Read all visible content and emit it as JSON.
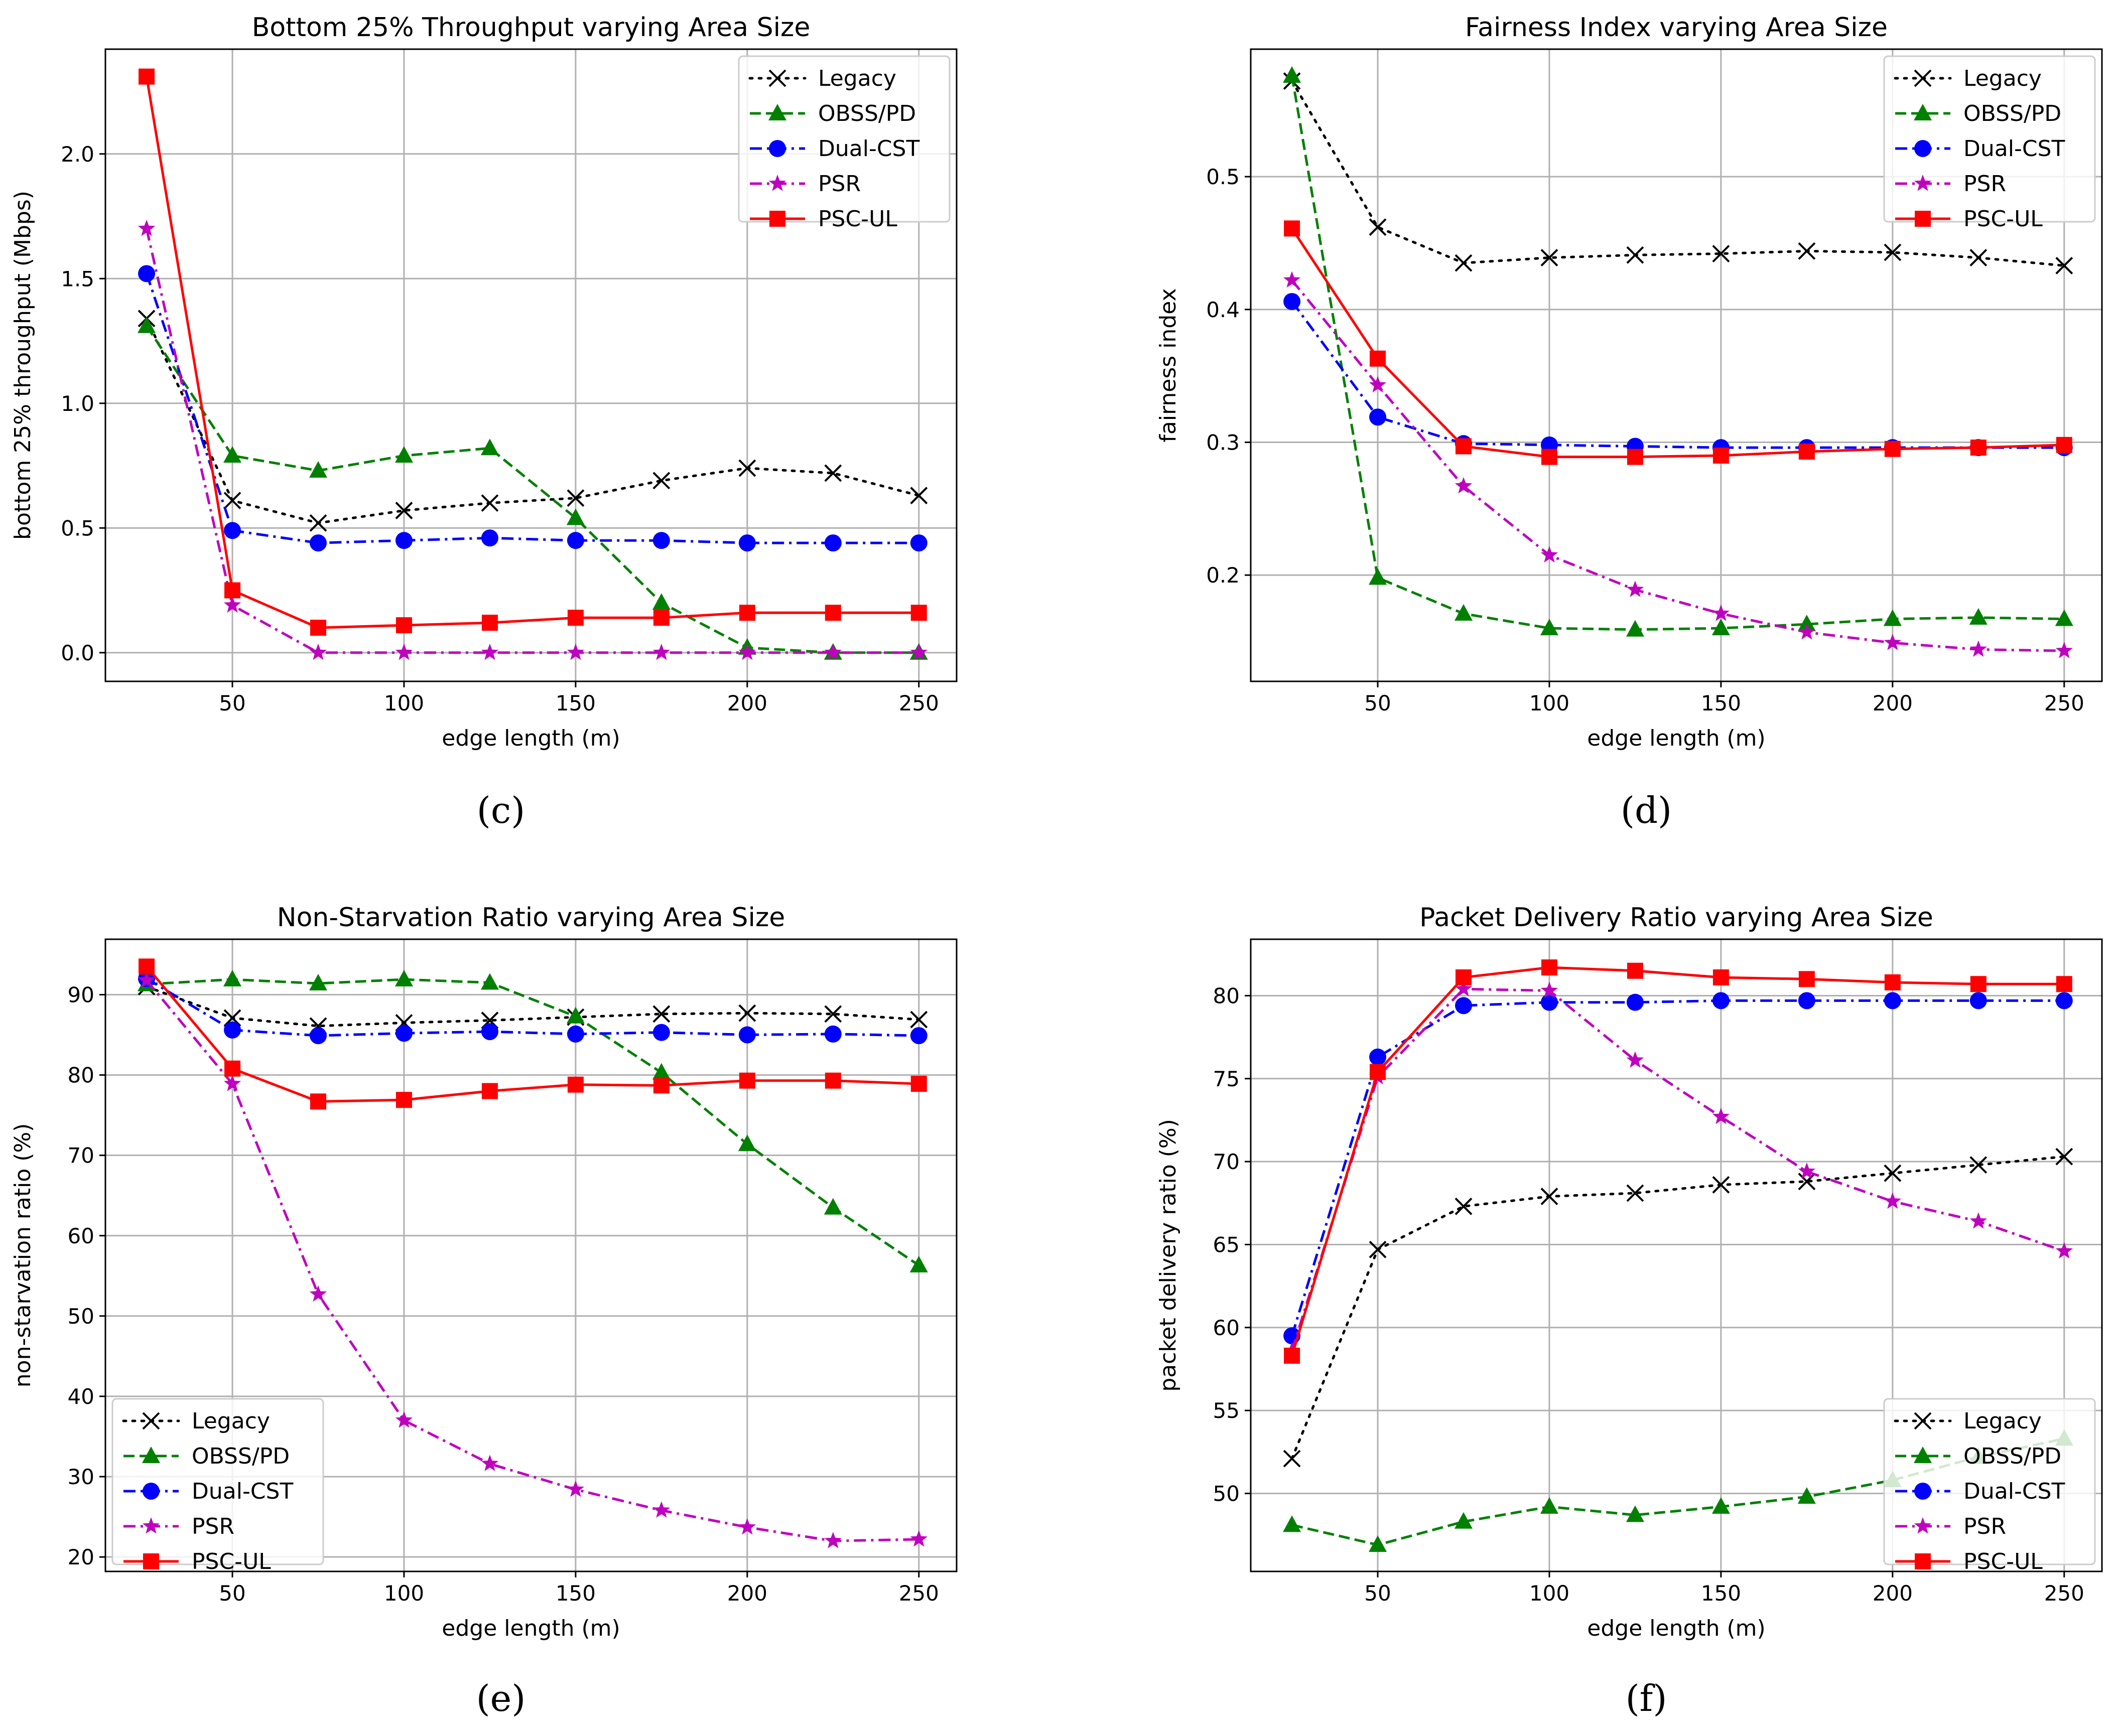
{
  "series_styles": [
    {
      "name": "Legacy",
      "color": "#000000",
      "dash": "dotted",
      "marker": "x"
    },
    {
      "name": "OBSS/PD",
      "color": "#008000",
      "dash": "dashed",
      "marker": "triangle"
    },
    {
      "name": "Dual-CST",
      "color": "#0000ff",
      "dash": "dashdot",
      "marker": "circle"
    },
    {
      "name": "PSR",
      "color": "#bf00bf",
      "dash": "dashdot",
      "marker": "star"
    },
    {
      "name": "PSC-UL",
      "color": "#ff0000",
      "dash": "solid",
      "marker": "square"
    }
  ],
  "chart_data": [
    {
      "type": "line",
      "panel_label": "(c)",
      "title": "Bottom 25% Throughput varying Area Size",
      "xlabel": "edge length (m)",
      "ylabel": "bottom 25% throughput (Mbps)",
      "x": [
        25,
        50,
        75,
        100,
        125,
        150,
        175,
        200,
        225,
        250
      ],
      "xlim": [
        13,
        261
      ],
      "ylim": [
        -0.115,
        2.42
      ],
      "xticks": [
        50,
        100,
        150,
        200,
        250
      ],
      "yticks": [
        0.0,
        0.5,
        1.0,
        1.5,
        2.0
      ],
      "ytick_labels": [
        "0.0",
        "0.5",
        "1.0",
        "1.5",
        "2.0"
      ],
      "legend_loc": "upper right",
      "grid": true,
      "series": [
        {
          "name": "Legacy",
          "values": [
            1.34,
            0.61,
            0.52,
            0.57,
            0.6,
            0.62,
            0.69,
            0.74,
            0.72,
            0.63
          ]
        },
        {
          "name": "OBSS/PD",
          "values": [
            1.31,
            0.79,
            0.73,
            0.79,
            0.82,
            0.54,
            0.2,
            0.02,
            0.0,
            0.0
          ]
        },
        {
          "name": "Dual-CST",
          "values": [
            1.52,
            0.49,
            0.44,
            0.45,
            0.46,
            0.45,
            0.45,
            0.44,
            0.44,
            0.44
          ]
        },
        {
          "name": "PSR",
          "values": [
            1.7,
            0.19,
            0.0,
            0.0,
            0.0,
            0.0,
            0.0,
            0.0,
            0.0,
            0.0
          ]
        },
        {
          "name": "PSC-UL",
          "values": [
            2.31,
            0.25,
            0.1,
            0.11,
            0.12,
            0.14,
            0.14,
            0.16,
            0.16,
            0.16
          ]
        }
      ]
    },
    {
      "type": "line",
      "panel_label": "(d)",
      "title": "Fairness Index varying Area Size",
      "xlabel": "edge length (m)",
      "ylabel": "fairness index",
      "x": [
        25,
        50,
        75,
        100,
        125,
        150,
        175,
        200,
        225,
        250
      ],
      "xlim": [
        13,
        261
      ],
      "ylim": [
        0.12,
        0.596
      ],
      "xticks": [
        50,
        100,
        150,
        200,
        250
      ],
      "yticks": [
        0.2,
        0.3,
        0.4,
        0.5
      ],
      "ytick_labels": [
        "0.2",
        "0.3",
        "0.4",
        "0.5"
      ],
      "legend_loc": "upper right",
      "grid": true,
      "series": [
        {
          "name": "Legacy",
          "values": [
            0.572,
            0.462,
            0.435,
            0.439,
            0.441,
            0.442,
            0.444,
            0.443,
            0.439,
            0.433
          ]
        },
        {
          "name": "OBSS/PD",
          "values": [
            0.576,
            0.198,
            0.171,
            0.16,
            0.159,
            0.16,
            0.163,
            0.167,
            0.168,
            0.167
          ]
        },
        {
          "name": "Dual-CST",
          "values": [
            0.406,
            0.319,
            0.299,
            0.298,
            0.297,
            0.296,
            0.296,
            0.296,
            0.296,
            0.296
          ]
        },
        {
          "name": "PSR",
          "values": [
            0.422,
            0.343,
            0.267,
            0.215,
            0.189,
            0.171,
            0.157,
            0.149,
            0.144,
            0.143
          ]
        },
        {
          "name": "PSC-UL",
          "values": [
            0.461,
            0.363,
            0.297,
            0.289,
            0.289,
            0.29,
            0.293,
            0.295,
            0.296,
            0.298
          ]
        }
      ]
    },
    {
      "type": "line",
      "panel_label": "(e)",
      "title": "Non-Starvation Ratio varying Area Size",
      "xlabel": "edge length (m)",
      "ylabel": "non-starvation ratio (%)",
      "x": [
        25,
        50,
        75,
        100,
        125,
        150,
        175,
        200,
        225,
        250
      ],
      "xlim": [
        13,
        261
      ],
      "ylim": [
        18.2,
        96.9
      ],
      "xticks": [
        50,
        100,
        150,
        200,
        250
      ],
      "yticks": [
        20,
        30,
        40,
        50,
        60,
        70,
        80,
        90
      ],
      "ytick_labels": [
        "20",
        "30",
        "40",
        "50",
        "60",
        "70",
        "80",
        "90"
      ],
      "legend_loc": "lower left",
      "grid": true,
      "series": [
        {
          "name": "Legacy",
          "values": [
            91.0,
            87.1,
            86.1,
            86.5,
            86.8,
            87.2,
            87.6,
            87.7,
            87.6,
            86.9
          ]
        },
        {
          "name": "OBSS/PD",
          "values": [
            91.3,
            91.9,
            91.4,
            91.9,
            91.5,
            87.3,
            80.3,
            71.4,
            63.5,
            56.3
          ]
        },
        {
          "name": "Dual-CST",
          "values": [
            92.0,
            85.6,
            84.9,
            85.2,
            85.4,
            85.1,
            85.3,
            85.0,
            85.1,
            84.9
          ]
        },
        {
          "name": "PSR",
          "values": [
            91.8,
            78.9,
            52.7,
            37.0,
            31.6,
            28.4,
            25.8,
            23.7,
            22.0,
            22.2
          ]
        },
        {
          "name": "PSC-UL",
          "values": [
            93.5,
            80.8,
            76.7,
            76.9,
            78.0,
            78.8,
            78.7,
            79.3,
            79.3,
            78.9
          ]
        }
      ]
    },
    {
      "type": "line",
      "panel_label": "(f)",
      "title": "Packet Delivery Ratio varying Area Size",
      "xlabel": "edge length (m)",
      "ylabel": "packet delivery ratio (%)",
      "x": [
        25,
        50,
        75,
        100,
        125,
        150,
        175,
        200,
        225,
        250
      ],
      "xlim": [
        13,
        261
      ],
      "ylim": [
        45.3,
        83.4
      ],
      "xticks": [
        50,
        100,
        150,
        200,
        250
      ],
      "yticks": [
        50,
        55,
        60,
        65,
        70,
        75,
        80
      ],
      "ytick_labels": [
        "50",
        "55",
        "60",
        "65",
        "70",
        "75",
        "80"
      ],
      "legend_loc": "lower right",
      "grid": true,
      "series": [
        {
          "name": "Legacy",
          "values": [
            52.1,
            64.7,
            67.3,
            67.9,
            68.1,
            68.6,
            68.8,
            69.3,
            69.8,
            70.3
          ]
        },
        {
          "name": "OBSS/PD",
          "values": [
            48.1,
            46.9,
            48.3,
            49.2,
            48.7,
            49.2,
            49.8,
            50.8,
            52.2,
            53.3
          ]
        },
        {
          "name": "Dual-CST",
          "values": [
            59.5,
            76.3,
            79.4,
            79.6,
            79.6,
            79.7,
            79.7,
            79.7,
            79.7,
            79.7
          ]
        },
        {
          "name": "PSR",
          "values": [
            58.6,
            75.1,
            80.4,
            80.3,
            76.1,
            72.7,
            69.4,
            67.6,
            66.4,
            64.6
          ]
        },
        {
          "name": "PSC-UL",
          "values": [
            58.3,
            75.4,
            81.1,
            81.7,
            81.5,
            81.1,
            81.0,
            80.8,
            80.7,
            80.7
          ]
        }
      ]
    }
  ]
}
